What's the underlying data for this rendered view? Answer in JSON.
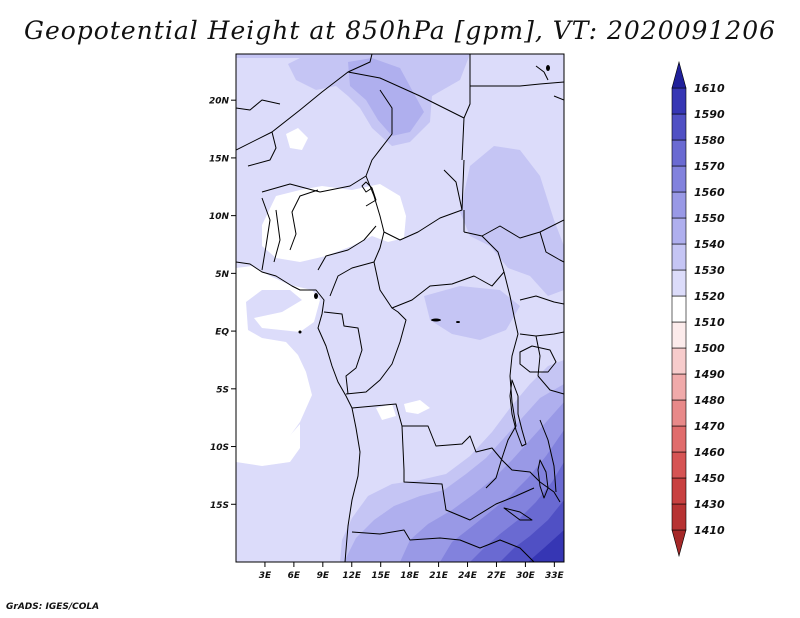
{
  "title": "Geopotential Height at 850hPa [gpm], VT: 2020091206",
  "credit": "GrADS: IGES/COLA",
  "map": {
    "variable": "Geopotential Height at 850hPa",
    "units": "gpm",
    "valid_time": "2020091206",
    "lon_range": [
      0,
      34
    ],
    "lat_range": [
      -20,
      24
    ],
    "lat_ticks": [
      {
        "value": 20,
        "label": "20N"
      },
      {
        "value": 15,
        "label": "15N"
      },
      {
        "value": 10,
        "label": "10N"
      },
      {
        "value": 5,
        "label": "5N"
      },
      {
        "value": 0,
        "label": "EQ"
      },
      {
        "value": -5,
        "label": "5S"
      },
      {
        "value": -10,
        "label": "10S"
      },
      {
        "value": -15,
        "label": "15S"
      }
    ],
    "lon_ticks": [
      {
        "value": 3,
        "label": "3E"
      },
      {
        "value": 6,
        "label": "6E"
      },
      {
        "value": 9,
        "label": "9E"
      },
      {
        "value": 12,
        "label": "12E"
      },
      {
        "value": 15,
        "label": "15E"
      },
      {
        "value": 18,
        "label": "18E"
      },
      {
        "value": 21,
        "label": "21E"
      },
      {
        "value": 24,
        "label": "24E"
      },
      {
        "value": 27,
        "label": "27E"
      },
      {
        "value": 30,
        "label": "30E"
      },
      {
        "value": 33,
        "label": "33E"
      }
    ]
  },
  "colorbar": {
    "levels": [
      1410,
      1430,
      1450,
      1460,
      1470,
      1480,
      1490,
      1500,
      1510,
      1520,
      1530,
      1540,
      1550,
      1560,
      1570,
      1580,
      1590,
      1610
    ],
    "colors": [
      "#a52828",
      "#b73232",
      "#c84040",
      "#d65454",
      "#e06c6c",
      "#e88989",
      "#f0aaaa",
      "#f7cccc",
      "#fcebeb",
      "#ffffff",
      "#dcdcfa",
      "#c5c5f4",
      "#afafee",
      "#9999e6",
      "#8282dd",
      "#6a6ad2",
      "#5050c4",
      "#3636b4",
      "#20209a"
    ]
  }
}
